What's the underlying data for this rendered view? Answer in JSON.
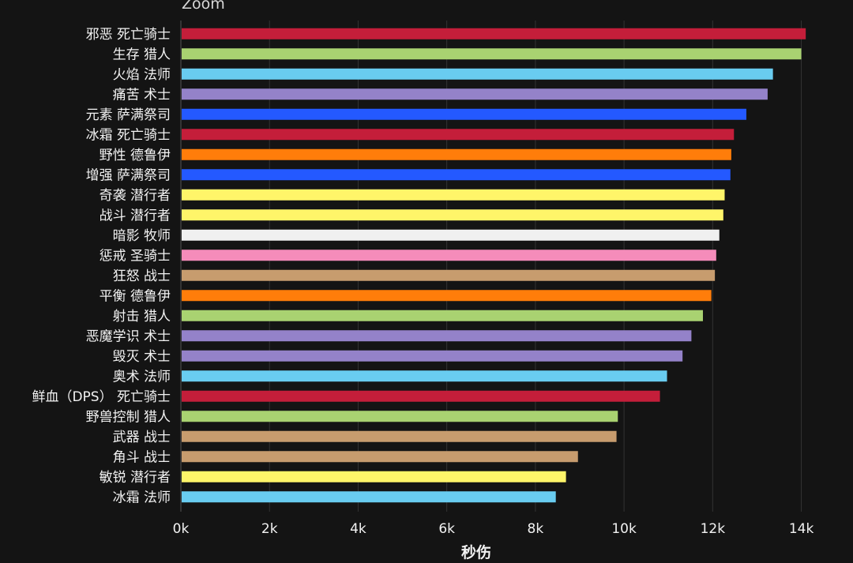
{
  "zoom_label": "Zoom",
  "chart_data": {
    "type": "bar",
    "orientation": "horizontal",
    "title": "",
    "xlabel": "秒伤",
    "ylabel": "",
    "xlim": [
      0,
      14400
    ],
    "x_ticks": [
      0,
      2000,
      4000,
      6000,
      8000,
      10000,
      12000,
      14000
    ],
    "x_tick_labels": [
      "0k",
      "2k",
      "4k",
      "6k",
      "8k",
      "10k",
      "12k",
      "14k"
    ],
    "grid": "vertical",
    "categories": [
      "邪恶 死亡骑士",
      "生存 猎人",
      "火焰 法师",
      "痛苦 术士",
      "元素 萨满祭司",
      "冰霜 死亡骑士",
      "野性 德鲁伊",
      "增强 萨满祭司",
      "奇袭 潜行者",
      "战斗 潜行者",
      "暗影 牧师",
      "惩戒 圣骑士",
      "狂怒 战士",
      "平衡 德鲁伊",
      "射击 猎人",
      "恶魔学识 术士",
      "毁灭 术士",
      "奥术 法师",
      "鲜血（DPS） 死亡骑士",
      "野兽控制 猎人",
      "武器 战士",
      "角斗 战士",
      "敏锐 潜行者",
      "冰霜 法师"
    ],
    "values": [
      14100,
      14000,
      13360,
      13240,
      12760,
      12480,
      12420,
      12400,
      12270,
      12240,
      12150,
      12080,
      12050,
      11970,
      11780,
      11520,
      11320,
      10970,
      10810,
      9860,
      9830,
      8960,
      8690,
      8460
    ],
    "colors": [
      "#c41e3a",
      "#a9d271",
      "#69ccf0",
      "#9482c9",
      "#2459ff",
      "#c41e3a",
      "#ff7d0a",
      "#2459ff",
      "#fff569",
      "#fff569",
      "#f0f0f0",
      "#f58cba",
      "#c79c6e",
      "#ff7d0a",
      "#a9d271",
      "#9482c9",
      "#9482c9",
      "#69ccf0",
      "#c41e3a",
      "#a9d271",
      "#c79c6e",
      "#c79c6e",
      "#fff569",
      "#69ccf0"
    ],
    "background": "#141414",
    "gridline_color": "#333333",
    "text_color": "#f2f2f2"
  }
}
